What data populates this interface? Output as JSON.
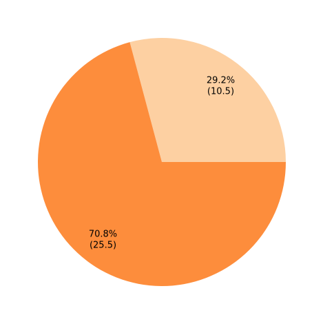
{
  "chart_data": {
    "type": "pie",
    "title": "",
    "start_angle_deg": 0,
    "direction": "counterclockwise",
    "slices": [
      {
        "value": 10.5,
        "percent_label": "29.2%",
        "value_label": "(10.5)",
        "color": "#fdd0a2"
      },
      {
        "value": 25.5,
        "percent_label": "70.8%",
        "value_label": "(25.5)",
        "color": "#fd8d3c"
      }
    ],
    "legend": "none"
  }
}
